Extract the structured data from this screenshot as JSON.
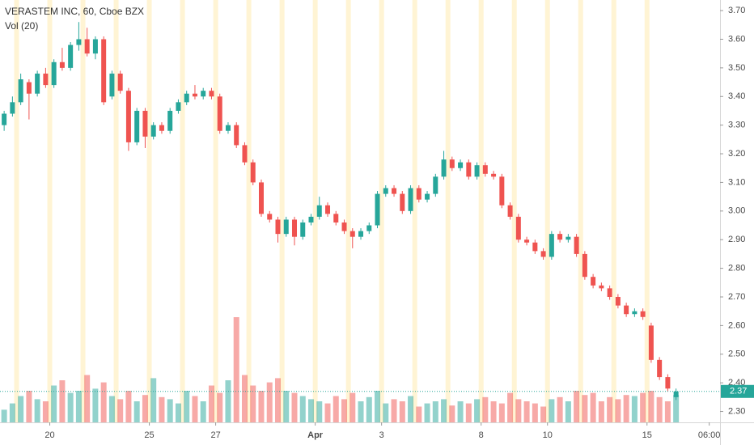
{
  "chart_data": {
    "type": "candlestick",
    "title": "VERASTEM INC, 60, Cboe BZX",
    "volume_label": "Vol (20)",
    "up_color": "#26a69a",
    "down_color": "#ef5350",
    "x": [
      0,
      1,
      2,
      3,
      4,
      5,
      6,
      7,
      8,
      9,
      10,
      11,
      12,
      13,
      14,
      15,
      16,
      17,
      18,
      19,
      20,
      21,
      22,
      23,
      24,
      25,
      26,
      27,
      28,
      29,
      30,
      31,
      32,
      33,
      34,
      35,
      36,
      37,
      38,
      39,
      40,
      41,
      42,
      43,
      44,
      45,
      46,
      47,
      48,
      49,
      50,
      51,
      52,
      53,
      54,
      55,
      56,
      57,
      58,
      59,
      60,
      61,
      62,
      63,
      64,
      65,
      66,
      67,
      68,
      69,
      70,
      71,
      72,
      73,
      74,
      75,
      76,
      77,
      78,
      79,
      80,
      81
    ],
    "ohlc": [
      [
        3.3,
        3.35,
        3.28,
        3.34
      ],
      [
        3.34,
        3.4,
        3.33,
        3.38
      ],
      [
        3.38,
        3.48,
        3.37,
        3.46
      ],
      [
        3.45,
        3.46,
        3.32,
        3.41
      ],
      [
        3.41,
        3.49,
        3.4,
        3.48
      ],
      [
        3.48,
        3.5,
        3.43,
        3.44
      ],
      [
        3.44,
        3.53,
        3.43,
        3.52
      ],
      [
        3.52,
        3.57,
        3.49,
        3.5
      ],
      [
        3.5,
        3.59,
        3.49,
        3.58
      ],
      [
        3.58,
        3.66,
        3.56,
        3.6
      ],
      [
        3.6,
        3.64,
        3.54,
        3.55
      ],
      [
        3.55,
        3.61,
        3.53,
        3.6
      ],
      [
        3.6,
        3.61,
        3.37,
        3.38
      ],
      [
        3.4,
        3.49,
        3.39,
        3.48
      ],
      [
        3.48,
        3.49,
        3.41,
        3.42
      ],
      [
        3.42,
        3.43,
        3.21,
        3.24
      ],
      [
        3.24,
        3.36,
        3.23,
        3.35
      ],
      [
        3.35,
        3.36,
        3.22,
        3.26
      ],
      [
        3.26,
        3.31,
        3.25,
        3.3
      ],
      [
        3.3,
        3.31,
        3.27,
        3.28
      ],
      [
        3.28,
        3.36,
        3.27,
        3.35
      ],
      [
        3.35,
        3.39,
        3.34,
        3.38
      ],
      [
        3.38,
        3.42,
        3.37,
        3.41
      ],
      [
        3.41,
        3.44,
        3.39,
        3.4
      ],
      [
        3.4,
        3.43,
        3.39,
        3.42
      ],
      [
        3.42,
        3.43,
        3.39,
        3.4
      ],
      [
        3.4,
        3.41,
        3.27,
        3.28
      ],
      [
        3.28,
        3.31,
        3.27,
        3.3
      ],
      [
        3.3,
        3.31,
        3.22,
        3.23
      ],
      [
        3.23,
        3.24,
        3.16,
        3.17
      ],
      [
        3.17,
        3.18,
        3.09,
        3.1
      ],
      [
        3.1,
        3.11,
        2.98,
        2.99
      ],
      [
        2.99,
        3.0,
        2.96,
        2.97
      ],
      [
        2.97,
        2.98,
        2.89,
        2.92
      ],
      [
        2.92,
        2.98,
        2.91,
        2.97
      ],
      [
        2.97,
        2.98,
        2.88,
        2.91
      ],
      [
        2.91,
        2.97,
        2.9,
        2.96
      ],
      [
        2.96,
        2.99,
        2.95,
        2.98
      ],
      [
        2.98,
        3.05,
        2.97,
        3.02
      ],
      [
        3.02,
        3.03,
        2.98,
        2.99
      ],
      [
        2.99,
        3.0,
        2.95,
        2.96
      ],
      [
        2.96,
        2.97,
        2.92,
        2.93
      ],
      [
        2.93,
        2.94,
        2.87,
        2.91
      ],
      [
        2.91,
        2.94,
        2.9,
        2.93
      ],
      [
        2.93,
        2.96,
        2.92,
        2.95
      ],
      [
        2.95,
        3.07,
        2.94,
        3.06
      ],
      [
        3.06,
        3.09,
        3.05,
        3.08
      ],
      [
        3.08,
        3.09,
        3.05,
        3.06
      ],
      [
        3.06,
        3.07,
        2.99,
        3.0
      ],
      [
        3.0,
        3.09,
        2.99,
        3.08
      ],
      [
        3.08,
        3.09,
        3.03,
        3.04
      ],
      [
        3.04,
        3.07,
        3.03,
        3.06
      ],
      [
        3.06,
        3.13,
        3.05,
        3.12
      ],
      [
        3.12,
        3.21,
        3.11,
        3.18
      ],
      [
        3.18,
        3.19,
        3.14,
        3.15
      ],
      [
        3.15,
        3.18,
        3.14,
        3.17
      ],
      [
        3.17,
        3.18,
        3.11,
        3.12
      ],
      [
        3.12,
        3.17,
        3.11,
        3.16
      ],
      [
        3.16,
        3.17,
        3.12,
        3.13
      ],
      [
        3.13,
        3.14,
        3.11,
        3.12
      ],
      [
        3.12,
        3.13,
        3.01,
        3.02
      ],
      [
        3.02,
        3.03,
        2.97,
        2.98
      ],
      [
        2.98,
        2.99,
        2.89,
        2.9
      ],
      [
        2.9,
        2.91,
        2.88,
        2.89
      ],
      [
        2.89,
        2.9,
        2.85,
        2.86
      ],
      [
        2.86,
        2.87,
        2.83,
        2.84
      ],
      [
        2.84,
        2.93,
        2.83,
        2.92
      ],
      [
        2.92,
        2.93,
        2.89,
        2.9
      ],
      [
        2.9,
        2.92,
        2.89,
        2.91
      ],
      [
        2.91,
        2.92,
        2.84,
        2.85
      ],
      [
        2.85,
        2.86,
        2.76,
        2.77
      ],
      [
        2.77,
        2.78,
        2.73,
        2.74
      ],
      [
        2.74,
        2.75,
        2.72,
        2.73
      ],
      [
        2.73,
        2.74,
        2.69,
        2.7
      ],
      [
        2.7,
        2.71,
        2.66,
        2.67
      ],
      [
        2.67,
        2.68,
        2.63,
        2.64
      ],
      [
        2.64,
        2.66,
        2.63,
        2.65
      ],
      [
        2.65,
        2.66,
        2.62,
        2.63
      ],
      [
        2.6,
        2.61,
        2.47,
        2.48
      ],
      [
        2.48,
        2.49,
        2.41,
        2.42
      ],
      [
        2.42,
        2.43,
        2.37,
        2.38
      ],
      [
        2.35,
        2.38,
        2.34,
        2.37
      ]
    ],
    "volume": [
      12,
      18,
      25,
      30,
      22,
      20,
      35,
      40,
      28,
      30,
      45,
      32,
      38,
      25,
      22,
      30,
      20,
      26,
      42,
      24,
      22,
      18,
      30,
      25,
      20,
      35,
      28,
      40,
      100,
      45,
      35,
      30,
      38,
      42,
      30,
      28,
      25,
      22,
      20,
      18,
      25,
      22,
      28,
      20,
      24,
      30,
      18,
      22,
      20,
      25,
      15,
      18,
      20,
      22,
      16,
      20,
      18,
      22,
      24,
      20,
      18,
      28,
      22,
      20,
      18,
      15,
      22,
      24,
      20,
      30,
      26,
      28,
      20,
      24,
      22,
      26,
      25,
      28,
      30,
      24,
      20,
      26
    ],
    "xlim": [
      0,
      86.8
    ],
    "xticks": [
      {
        "value": 6,
        "label": "20"
      },
      {
        "value": 18,
        "label": "25"
      },
      {
        "value": 26,
        "label": "27"
      },
      {
        "value": 38,
        "label": "Apr"
      },
      {
        "value": 46,
        "label": "3"
      },
      {
        "value": 58,
        "label": "8"
      },
      {
        "value": 66,
        "label": "10"
      },
      {
        "value": 78,
        "label": "15"
      },
      {
        "value": 85.5,
        "label": "06:00"
      }
    ],
    "ylim": [
      2.262,
      3.737
    ],
    "yticks": [
      {
        "value": 3.7,
        "label": "3.70"
      },
      {
        "value": 3.6,
        "label": "3.60"
      },
      {
        "value": 3.5,
        "label": "3.50"
      },
      {
        "value": 3.4,
        "label": "3.40"
      },
      {
        "value": 3.3,
        "label": "3.30"
      },
      {
        "value": 3.2,
        "label": "3.20"
      },
      {
        "value": 3.1,
        "label": "3.10"
      },
      {
        "value": 3.0,
        "label": "3.00"
      },
      {
        "value": 2.9,
        "label": "2.90"
      },
      {
        "value": 2.8,
        "label": "2.80"
      },
      {
        "value": 2.7,
        "label": "2.70"
      },
      {
        "value": 2.6,
        "label": "2.60"
      },
      {
        "value": 2.5,
        "label": "2.50"
      },
      {
        "value": 2.4,
        "label": "2.40"
      },
      {
        "value": 2.3,
        "label": "2.30"
      }
    ],
    "last_price": {
      "value": 2.37,
      "label": "2.37"
    }
  }
}
